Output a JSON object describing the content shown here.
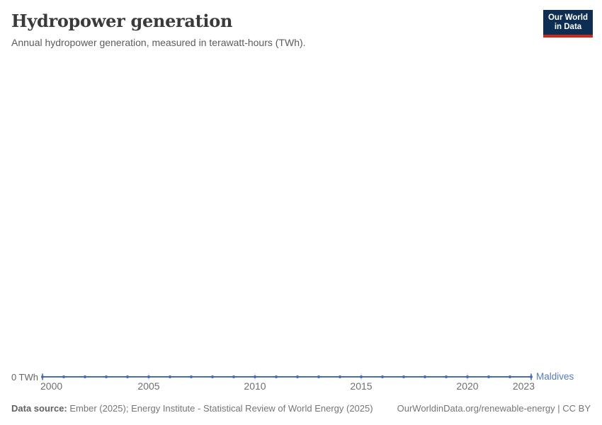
{
  "header": {
    "title": "Hydropower generation",
    "subtitle": "Annual hydropower generation, measured in terawatt-hours (TWh).",
    "logo": {
      "line1": "Our World",
      "line2": "in Data",
      "bg_color": "#0d2e52",
      "accent_color": "#cc2a17",
      "text_color": "#ffffff"
    }
  },
  "chart_data": {
    "type": "line",
    "title": "Hydropower generation",
    "unit": "TWh",
    "x_ticks": [
      2000,
      2005,
      2010,
      2015,
      2020,
      2023
    ],
    "y_ticks": [
      {
        "value": 0,
        "label": "0 TWh"
      }
    ],
    "xlim": [
      2000,
      2023
    ],
    "grid": "off",
    "legend_position": "end-of-line",
    "series": [
      {
        "name": "Maldives",
        "color": "#4a6db1",
        "label_color": "#577bbd",
        "years": [
          2000,
          2001,
          2002,
          2003,
          2004,
          2005,
          2006,
          2007,
          2008,
          2009,
          2010,
          2011,
          2012,
          2013,
          2014,
          2015,
          2016,
          2017,
          2018,
          2019,
          2020,
          2021,
          2022,
          2023
        ],
        "values": [
          0,
          0,
          0,
          0,
          0,
          0,
          0,
          0,
          0,
          0,
          0,
          0,
          0,
          0,
          0,
          0,
          0,
          0,
          0,
          0,
          0,
          0,
          0,
          0
        ]
      }
    ]
  },
  "footer": {
    "source_label": "Data source:",
    "source_text": " Ember (2025); Energy Institute - Statistical Review of World Energy (2025)",
    "link_text": "OurWorldinData.org/renewable-energy | CC BY"
  }
}
